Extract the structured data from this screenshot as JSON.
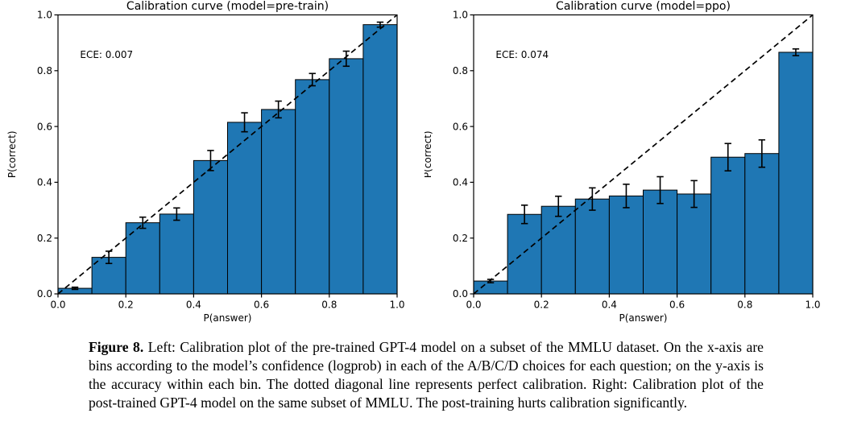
{
  "page": {
    "background": "#ffffff"
  },
  "caption": {
    "label": "Figure 8.",
    "text": " Left: Calibration plot of the pre-trained GPT-4 model on a subset of the MMLU dataset. On the x-axis are bins according to the model’s confidence (logprob) in each of the A/B/C/D choices for each question; on the y-axis is the accuracy within each bin. The dotted diagonal line represents perfect calibration. Right: Calibration plot of the post-trained GPT-4 model on the same subset of MMLU. The post-training hurts calibration significantly."
  },
  "chart_data": [
    {
      "type": "bar",
      "title": "Calibration curve (model=pre-train)",
      "annotation": "ECE: 0.007",
      "xlabel": "P(answer)",
      "ylabel": "P(correct)",
      "xlim": [
        0.0,
        1.0
      ],
      "ylim": [
        0.0,
        1.0
      ],
      "xtick_labels": [
        "0.0",
        "0.2",
        "0.4",
        "0.6",
        "0.8",
        "1.0"
      ],
      "ytick_labels": [
        "0.0",
        "0.2",
        "0.4",
        "0.6",
        "0.8",
        "1.0"
      ],
      "bin_start": 0.0,
      "bin_width": 0.1,
      "values": [
        0.02,
        0.131,
        0.255,
        0.286,
        0.478,
        0.615,
        0.661,
        0.768,
        0.843,
        0.965
      ],
      "errors": [
        0.004,
        0.022,
        0.02,
        0.022,
        0.036,
        0.034,
        0.03,
        0.022,
        0.027,
        0.009
      ],
      "bar_color": "#1f77b4",
      "bar_edge_color": "#000000",
      "diagonal_line": true,
      "grid": false,
      "legend": null
    },
    {
      "type": "bar",
      "title": "Calibration curve (model=ppo)",
      "annotation": "ECE: 0.074",
      "xlabel": "P(answer)",
      "ylabel": "P(correct)",
      "xlim": [
        0.0,
        1.0
      ],
      "ylim": [
        0.0,
        1.0
      ],
      "xtick_labels": [
        "0.0",
        "0.2",
        "0.4",
        "0.6",
        "0.8",
        "1.0"
      ],
      "ytick_labels": [
        "0.0",
        "0.2",
        "0.4",
        "0.6",
        "0.8",
        "1.0"
      ],
      "bin_start": 0.0,
      "bin_width": 0.1,
      "values": [
        0.046,
        0.285,
        0.314,
        0.34,
        0.351,
        0.372,
        0.358,
        0.49,
        0.503,
        0.866
      ],
      "errors": [
        0.006,
        0.033,
        0.036,
        0.04,
        0.042,
        0.048,
        0.048,
        0.049,
        0.049,
        0.012
      ],
      "bar_color": "#1f77b4",
      "bar_edge_color": "#000000",
      "diagonal_line": true,
      "grid": false,
      "legend": null
    }
  ]
}
